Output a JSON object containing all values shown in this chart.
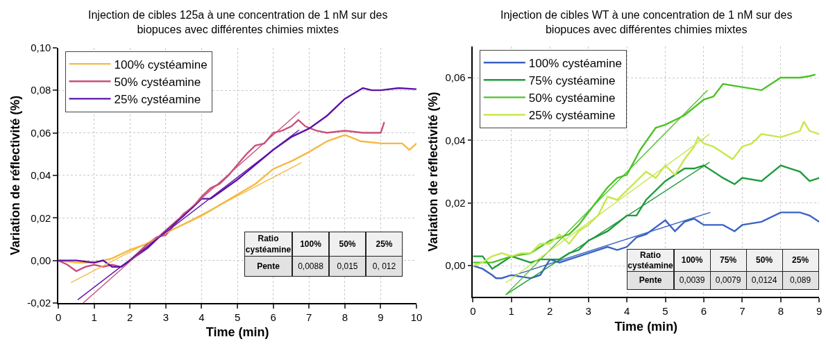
{
  "chart_data": [
    {
      "type": "line",
      "title": "Injection de cibles 125a à une concentration de 1 nM sur des\nbiopuces avec différentes chimies mixtes",
      "xlabel": "Time (min)",
      "ylabel": "Variation de réflectivité (%)",
      "xlim": [
        0,
        10
      ],
      "xticks": [
        0,
        1,
        2,
        3,
        4,
        5,
        6,
        7,
        8,
        9,
        10
      ],
      "ylim": [
        -0.02,
        0.1
      ],
      "yticks": [
        {
          "value": -0.02,
          "label": "-0,02"
        },
        {
          "value": 0,
          "label": "0,00"
        },
        {
          "value": 0.02,
          "label": "0,02"
        },
        {
          "value": 0.04,
          "label": "0,04"
        },
        {
          "value": 0.06,
          "label": "0,06"
        },
        {
          "value": 0.08,
          "label": "0,08"
        },
        {
          "value": 0.1,
          "label": "0,10"
        }
      ],
      "grid": true,
      "legend": "top left",
      "series": [
        {
          "name": "100% cystéamine",
          "color": "#f5b942",
          "x": [
            0,
            0.5,
            1,
            1.5,
            2,
            2.5,
            3,
            3.5,
            4,
            4.5,
            5,
            5.5,
            6,
            6.55,
            7,
            7.5,
            8,
            8.45,
            9.05,
            9.6,
            9.8,
            10
          ],
          "values": [
            0,
            -0.001,
            -0.001,
            0.001,
            0.005,
            0.008,
            0.013,
            0.017,
            0.021,
            0.026,
            0.031,
            0.036,
            0.043,
            0.047,
            0.051,
            0.056,
            0.059,
            0.056,
            0.055,
            0.055,
            0.052,
            0.055
          ]
        },
        {
          "name": "50% cystéamine",
          "color": "#c94f7c",
          "x": [
            0,
            0.25,
            0.5,
            0.75,
            1,
            1.25,
            1.5,
            1.75,
            2,
            2.25,
            2.5,
            2.75,
            3,
            3.25,
            3.5,
            3.75,
            4,
            4.25,
            4.5,
            4.75,
            5,
            5.25,
            5.5,
            5.75,
            6,
            6.25,
            6.5,
            6.7,
            6.9,
            7.2,
            7.5,
            8,
            8.5,
            9,
            9.1
          ],
          "values": [
            0,
            -0.002,
            -0.005,
            -0.003,
            -0.002,
            -0.003,
            -0.002,
            -0.003,
            0,
            0.004,
            0.008,
            0.011,
            0.012,
            0.017,
            0.022,
            0.025,
            0.03,
            0.034,
            0.036,
            0.04,
            0.045,
            0.05,
            0.054,
            0.055,
            0.06,
            0.061,
            0.063,
            0.066,
            0.063,
            0.061,
            0.06,
            0.061,
            0.06,
            0.06,
            0.065
          ]
        },
        {
          "name": "25% cystéamine",
          "color": "#5c12a8",
          "x": [
            0,
            0.5,
            1,
            1.25,
            1.5,
            1.75,
            2,
            2.5,
            3,
            3.5,
            4,
            4.25,
            4.5,
            5,
            5.5,
            6,
            6.5,
            7,
            7.5,
            8,
            8.5,
            8.75,
            9,
            9.5,
            10
          ],
          "values": [
            0,
            0,
            -0.001,
            0,
            -0.003,
            -0.003,
            0,
            0.006,
            0.014,
            0.021,
            0.029,
            0.029,
            0.032,
            0.038,
            0.045,
            0.052,
            0.058,
            0.062,
            0.068,
            0.076,
            0.081,
            0.08,
            0.08,
            0.081,
            0.0805
          ]
        },
        {
          "color": "#f5b942",
          "x": [
            0.35,
            6.79
          ],
          "values": [
            -0.0104,
            0.046
          ]
        },
        {
          "color": "#c94f7c",
          "x": [
            0.69,
            6.74
          ],
          "values": [
            -0.02,
            0.07
          ]
        },
        {
          "color": "#5c12a8",
          "x": [
            0.54,
            6.72
          ],
          "values": [
            -0.0185,
            0.0613
          ]
        }
      ],
      "annotations": [
        "Ratio\ncystéamine",
        "100%",
        "50%",
        "25%",
        "Pente",
        "0,0088",
        "0,015",
        "0, 012"
      ]
    },
    {
      "type": "line",
      "title": "Injection de cibles WT à une concentration de 1 nM sur des\nbiopuces avec différentes chimies mixtes",
      "xlabel": "Time (min)",
      "ylabel": "Variation de réflectivité (%)",
      "xlim": [
        0,
        9
      ],
      "xticks": [
        0,
        1,
        2,
        3,
        4,
        5,
        6,
        7,
        8,
        9
      ],
      "ylim": [
        -0.01,
        0.07
      ],
      "yticks": [
        {
          "value": 0,
          "label": "0,00"
        },
        {
          "value": 0.02,
          "label": "0,02"
        },
        {
          "value": 0.04,
          "label": "0,04"
        },
        {
          "value": 0.06,
          "label": "0,06"
        }
      ],
      "grid": true,
      "legend": "top left",
      "series": [
        {
          "name": "100% cystéamine",
          "color": "#3a62c4",
          "x": [
            0,
            0.25,
            0.5,
            0.6,
            0.75,
            1,
            1.5,
            1.75,
            2,
            2.25,
            2.5,
            3,
            3.5,
            3.75,
            4,
            4.25,
            4.5,
            5,
            5.25,
            5.5,
            5.75,
            6,
            6.5,
            6.8,
            7,
            7.5,
            8,
            8.5,
            8.75,
            9
          ],
          "values": [
            0,
            -0.001,
            -0.003,
            -0.004,
            -0.004,
            -0.003,
            -0.004,
            -0.003,
            0.002,
            0.001,
            0.002,
            0.004,
            0.006,
            0.005,
            0.006,
            0.009,
            0.01,
            0.0145,
            0.011,
            0.014,
            0.015,
            0.013,
            0.013,
            0.011,
            0.013,
            0.014,
            0.017,
            0.017,
            0.016,
            0.014
          ]
        },
        {
          "name": "75% cystéamine",
          "color": "#1e9b3c",
          "x": [
            0,
            0.25,
            0.5,
            0.75,
            1,
            1.25,
            1.5,
            1.75,
            2,
            2.25,
            2.5,
            2.75,
            3,
            3.5,
            4,
            4.25,
            4.5,
            5,
            5.5,
            5.75,
            6,
            6.5,
            6.8,
            7,
            7.5,
            8,
            8.25,
            8.5,
            8.75,
            9
          ],
          "values": [
            0.003,
            0.003,
            -0.001,
            0.001,
            0.003,
            0.002,
            0.001,
            0.002,
            0.002,
            0.002,
            0.004,
            0.005,
            0.008,
            0.011,
            0.016,
            0.016,
            0.021,
            0.027,
            0.031,
            0.031,
            0.032,
            0.028,
            0.026,
            0.028,
            0.027,
            0.032,
            0.031,
            0.03,
            0.027,
            0.028
          ]
        },
        {
          "name": "50% cystéamine",
          "color": "#4cc226",
          "x": [
            0,
            0.5,
            1,
            1.5,
            1.75,
            2,
            2.25,
            2.5,
            2.75,
            3,
            3.25,
            3.5,
            3.75,
            4,
            4.35,
            4.75,
            5,
            5.5,
            6,
            6.25,
            6.5,
            7,
            7.5,
            8,
            8.5,
            8.75,
            8.9
          ],
          "values": [
            0.001,
            0.001,
            0.003,
            0.004,
            0.006,
            0.008,
            0.009,
            0.01,
            0.013,
            0.017,
            0.021,
            0.025,
            0.028,
            0.029,
            0.037,
            0.044,
            0.045,
            0.048,
            0.053,
            0.054,
            0.058,
            0.057,
            0.056,
            0.06,
            0.06,
            0.0605,
            0.061
          ]
        },
        {
          "name": "25% cystéamine",
          "color": "#c6e84a",
          "x": [
            0,
            0.25,
            0.5,
            0.75,
            1,
            1.25,
            1.5,
            1.75,
            2,
            2.25,
            2.5,
            2.75,
            3,
            3.25,
            3.5,
            3.75,
            4,
            4.25,
            4.5,
            4.75,
            5,
            5.25,
            5.5,
            5.75,
            5.85,
            6,
            6.25,
            6.5,
            6.75,
            7,
            7.25,
            7.5,
            8,
            8.5,
            8.6,
            8.75,
            9
          ],
          "values": [
            0,
            0.001,
            0.003,
            0.004,
            0.003,
            0.004,
            0.004,
            0.007,
            0.007,
            0.01,
            0.007,
            0.011,
            0.013,
            0.016,
            0.022,
            0.021,
            0.024,
            0.027,
            0.03,
            0.028,
            0.032,
            0.029,
            0.034,
            0.038,
            0.041,
            0.039,
            0.038,
            0.036,
            0.034,
            0.038,
            0.039,
            0.042,
            0.041,
            0.043,
            0.046,
            0.043,
            0.042
          ]
        },
        {
          "color": "#3a62c4",
          "x": [
            1.03,
            6.17
          ],
          "values": [
            -0.0032,
            0.017
          ]
        },
        {
          "color": "#1e9b3c",
          "x": [
            0.85,
            6.15
          ],
          "values": [
            -0.0093,
            0.033
          ]
        },
        {
          "color": "#4cc226",
          "x": [
            0.85,
            6.1
          ],
          "values": [
            -0.0093,
            0.056
          ]
        },
        {
          "color": "#c6e84a",
          "x": [
            0.85,
            6.15
          ],
          "values": [
            -0.0055,
            0.042
          ]
        }
      ],
      "annotations": [
        "Ratio\ncystéamine",
        "100%",
        "75%",
        "50%",
        "25%",
        "Pente",
        "0,0039",
        "0,0079",
        "0,0124",
        "0,089"
      ]
    }
  ]
}
